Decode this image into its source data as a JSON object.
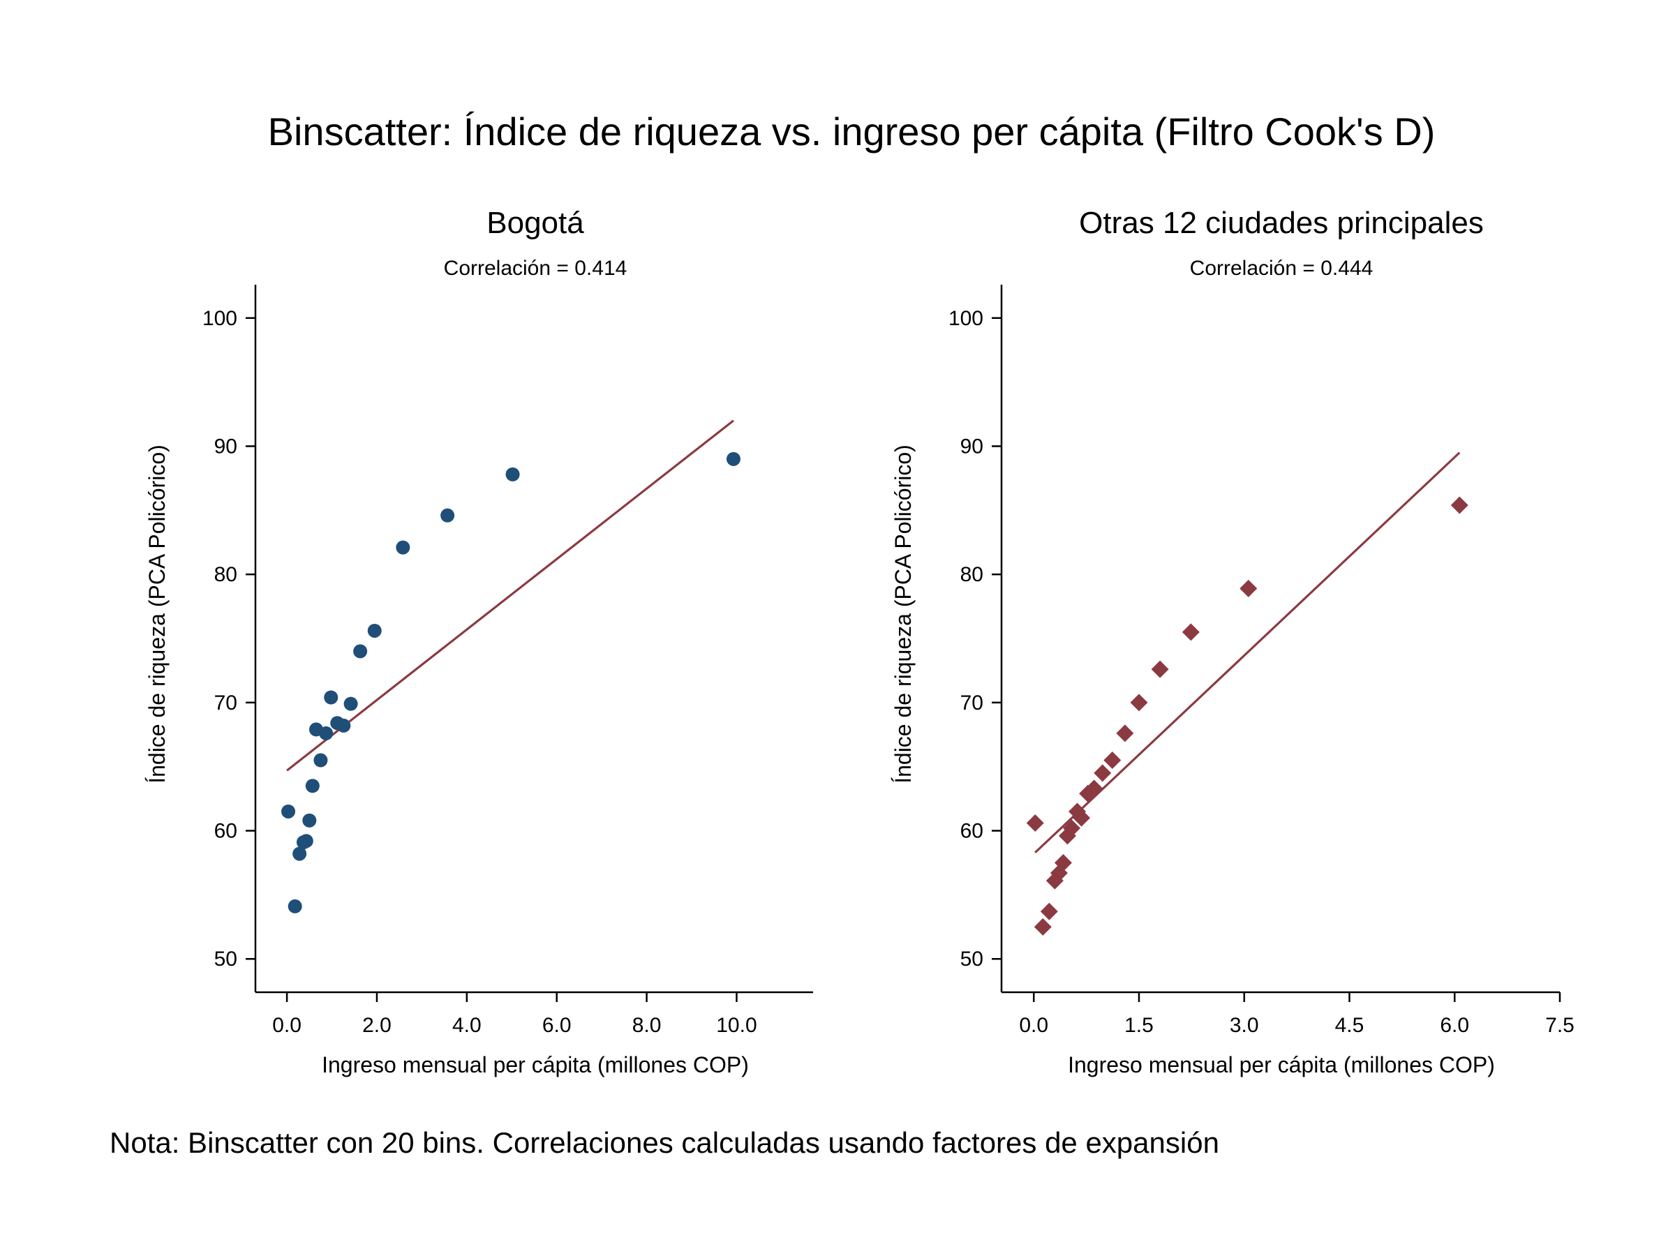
{
  "title": "Binscatter: Índice de riqueza vs. ingreso per cápita (Filtro Cook's D)",
  "note": "Nota: Binscatter con 20 bins. Correlaciones calculadas usando factores de expansión",
  "colors": {
    "bogota": "#1f4e79",
    "otras": "#8b3a42",
    "fit_bogota": "#8b3a42",
    "fit_otras": "#8b3a42"
  },
  "chart_data": [
    {
      "type": "scatter",
      "title": "Bogotá",
      "subtitle": "Correlación =  0.414",
      "xlabel": "Ingreso mensual per cápita (millones COP)",
      "ylabel": "Índice de riqueza (PCA Policórico)",
      "xlim": [
        -0.7,
        11.7
      ],
      "ylim": [
        47.4,
        102.6
      ],
      "xticks": [
        0,
        2,
        4,
        6,
        8,
        10
      ],
      "xtick_labels": [
        "0.0",
        "2.0",
        "4.0",
        "6.0",
        "8.0",
        "10.0"
      ],
      "yticks": [
        50,
        60,
        70,
        80,
        90,
        100
      ],
      "ytick_labels": [
        "50",
        "60",
        "70",
        "80",
        "90",
        "100"
      ],
      "marker": "circle",
      "grid": false,
      "points": [
        {
          "x": 0.03,
          "y": 61.5
        },
        {
          "x": 0.18,
          "y": 54.1
        },
        {
          "x": 0.28,
          "y": 58.2
        },
        {
          "x": 0.37,
          "y": 59.1
        },
        {
          "x": 0.43,
          "y": 59.2
        },
        {
          "x": 0.5,
          "y": 60.8
        },
        {
          "x": 0.57,
          "y": 63.5
        },
        {
          "x": 0.65,
          "y": 67.9
        },
        {
          "x": 0.75,
          "y": 65.5
        },
        {
          "x": 0.87,
          "y": 67.6
        },
        {
          "x": 0.98,
          "y": 70.4
        },
        {
          "x": 1.12,
          "y": 68.4
        },
        {
          "x": 1.26,
          "y": 68.2
        },
        {
          "x": 1.42,
          "y": 69.9
        },
        {
          "x": 1.63,
          "y": 74.0
        },
        {
          "x": 1.95,
          "y": 75.6
        },
        {
          "x": 2.58,
          "y": 82.1
        },
        {
          "x": 3.57,
          "y": 84.6
        },
        {
          "x": 5.02,
          "y": 87.8
        },
        {
          "x": 9.93,
          "y": 89.0
        }
      ],
      "fit_line": [
        {
          "x": 0.0,
          "y": 64.7
        },
        {
          "x": 9.93,
          "y": 92.0
        }
      ]
    },
    {
      "type": "scatter",
      "title": "Otras 12 ciudades principales",
      "subtitle": "Correlación = 0.444",
      "xlabel": "Ingreso mensual per cápita (millones COP)",
      "ylabel": "Índice de riqueza (PCA Policórico)",
      "xlim": [
        -0.46,
        7.5
      ],
      "ylim": [
        47.4,
        102.6
      ],
      "xticks": [
        0,
        1.5,
        3,
        4.5,
        6,
        7.5
      ],
      "xtick_labels": [
        "0.0",
        "1.5",
        "3.0",
        "4.5",
        "6.0",
        "7.5"
      ],
      "yticks": [
        50,
        60,
        70,
        80,
        90,
        100
      ],
      "ytick_labels": [
        "50",
        "60",
        "70",
        "80",
        "90",
        "100"
      ],
      "marker": "diamond",
      "grid": false,
      "points": [
        {
          "x": 0.02,
          "y": 60.6
        },
        {
          "x": 0.13,
          "y": 52.5
        },
        {
          "x": 0.22,
          "y": 53.7
        },
        {
          "x": 0.3,
          "y": 56.1
        },
        {
          "x": 0.36,
          "y": 56.7
        },
        {
          "x": 0.42,
          "y": 57.5
        },
        {
          "x": 0.48,
          "y": 59.6
        },
        {
          "x": 0.54,
          "y": 60.2
        },
        {
          "x": 0.62,
          "y": 61.5
        },
        {
          "x": 0.68,
          "y": 61.0
        },
        {
          "x": 0.77,
          "y": 62.9
        },
        {
          "x": 0.86,
          "y": 63.3
        },
        {
          "x": 0.98,
          "y": 64.5
        },
        {
          "x": 1.12,
          "y": 65.5
        },
        {
          "x": 1.3,
          "y": 67.6
        },
        {
          "x": 1.5,
          "y": 70.0
        },
        {
          "x": 1.8,
          "y": 72.6
        },
        {
          "x": 2.24,
          "y": 75.5
        },
        {
          "x": 3.06,
          "y": 78.9
        },
        {
          "x": 6.07,
          "y": 85.4
        }
      ],
      "fit_line": [
        {
          "x": 0.02,
          "y": 58.3
        },
        {
          "x": 6.07,
          "y": 89.5
        }
      ]
    }
  ]
}
